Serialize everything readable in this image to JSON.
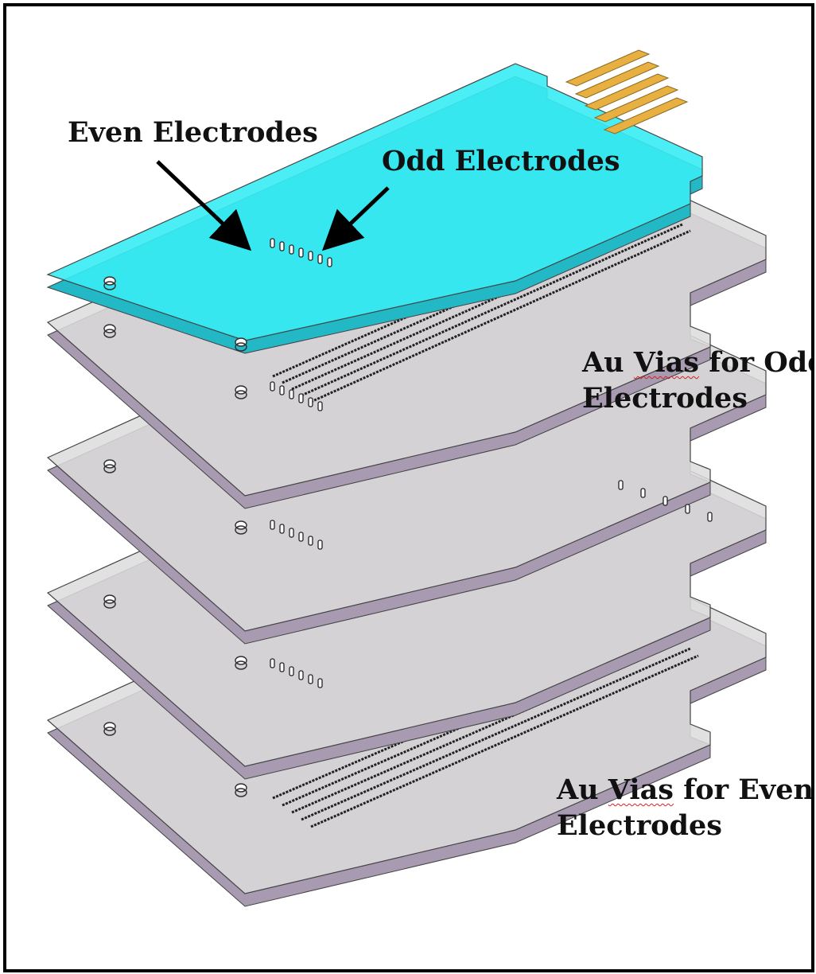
{
  "figure": {
    "labels": {
      "even_electrodes": "Even Electrodes",
      "odd_electrodes": "Odd Electrodes",
      "vias_odd": {
        "line1_prefix": "Au ",
        "line1_underlined": "Vias",
        "line1_suffix": " for Odd",
        "line2": "Electrodes"
      },
      "vias_even": {
        "line1_prefix": "Au ",
        "line1_underlined": "Vias",
        "line1_suffix": " for Even",
        "line2": "Electrodes"
      }
    },
    "colors": {
      "top_layer_fill": "#38ecf4",
      "layer_fill": "#dcdcdc",
      "layer_edge": "#a89ab0",
      "contact_pad": "#e8b040",
      "outline": "#444444",
      "spelling_underline": "#d62020"
    },
    "layers": [
      "top-contact-layer",
      "odd-trace-layer",
      "odd-via-layer",
      "even-via-layer",
      "even-trace-layer"
    ]
  }
}
